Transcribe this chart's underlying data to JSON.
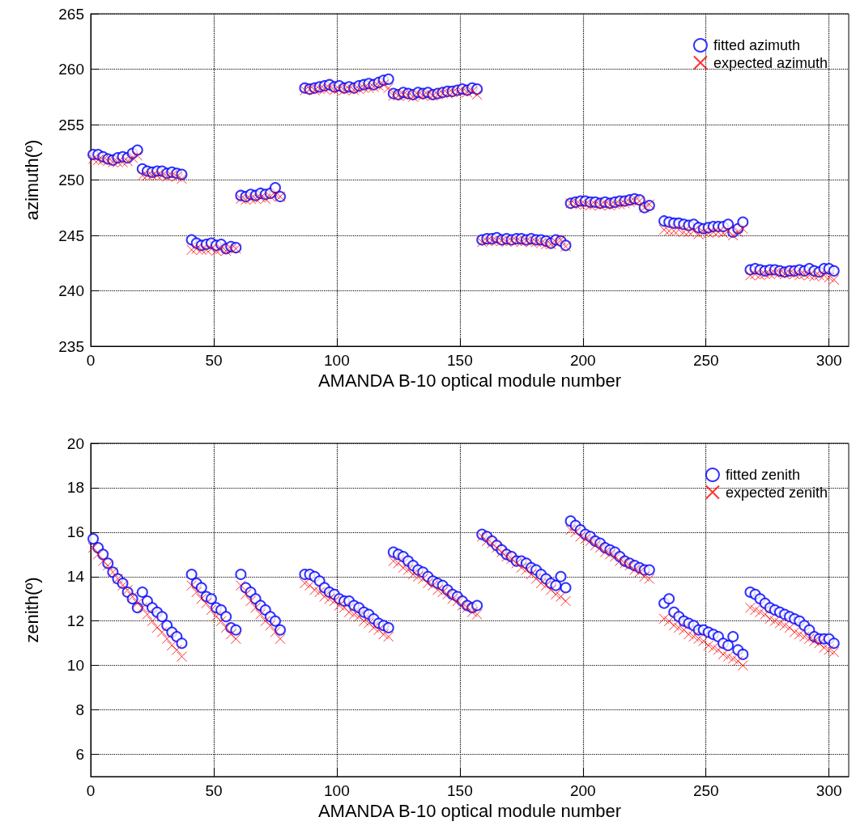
{
  "chart_data": [
    {
      "type": "scatter",
      "xlabel": "AMANDA B-10 optical module number",
      "ylabel": "azimuth(º)",
      "x": [
        1,
        3,
        5,
        7,
        9,
        11,
        13,
        15,
        17,
        19,
        21,
        23,
        25,
        27,
        29,
        31,
        33,
        35,
        37,
        41,
        43,
        45,
        47,
        49,
        51,
        53,
        55,
        57,
        59,
        61,
        63,
        65,
        67,
        69,
        71,
        73,
        75,
        77,
        87,
        89,
        91,
        93,
        95,
        97,
        99,
        101,
        103,
        105,
        107,
        109,
        111,
        113,
        115,
        117,
        119,
        121,
        123,
        125,
        127,
        129,
        131,
        133,
        135,
        137,
        139,
        141,
        143,
        145,
        147,
        149,
        151,
        153,
        155,
        157,
        159,
        161,
        163,
        165,
        167,
        169,
        171,
        173,
        175,
        177,
        179,
        181,
        183,
        185,
        187,
        189,
        191,
        193,
        195,
        197,
        199,
        201,
        203,
        205,
        207,
        209,
        211,
        213,
        215,
        217,
        219,
        221,
        223,
        225,
        227,
        233,
        235,
        237,
        239,
        241,
        243,
        245,
        247,
        249,
        251,
        253,
        255,
        257,
        259,
        261,
        263,
        265,
        268,
        270,
        272,
        274,
        276,
        278,
        280,
        282,
        284,
        286,
        288,
        290,
        292,
        294,
        296,
        298,
        300,
        302
      ],
      "series": [
        {
          "name": "fitted azimuth",
          "color": "#0000ff",
          "marker": "circle",
          "values": [
            252.3,
            252.3,
            252.1,
            251.9,
            251.8,
            252.0,
            252.1,
            252.0,
            252.4,
            252.7,
            251.0,
            250.8,
            250.7,
            250.8,
            250.8,
            250.6,
            250.7,
            250.6,
            250.5,
            244.6,
            244.3,
            244.1,
            244.2,
            244.3,
            244.1,
            244.2,
            243.8,
            244.0,
            243.9,
            248.6,
            248.5,
            248.7,
            248.6,
            248.8,
            248.7,
            248.8,
            249.3,
            248.5,
            258.3,
            258.2,
            258.3,
            258.4,
            258.5,
            258.6,
            258.4,
            258.5,
            258.3,
            258.4,
            258.3,
            258.5,
            258.6,
            258.7,
            258.6,
            258.8,
            259.0,
            259.1,
            257.8,
            257.7,
            257.9,
            257.8,
            257.7,
            257.9,
            257.8,
            257.9,
            257.7,
            257.8,
            257.9,
            258.0,
            258.0,
            258.1,
            258.2,
            258.1,
            258.3,
            258.2,
            244.6,
            244.7,
            244.7,
            244.8,
            244.6,
            244.7,
            244.6,
            244.7,
            244.7,
            244.6,
            244.7,
            244.6,
            244.6,
            244.5,
            244.3,
            244.6,
            244.5,
            244.1,
            247.9,
            248.0,
            248.1,
            248.1,
            248.0,
            248.0,
            247.9,
            248.0,
            247.9,
            248.0,
            248.1,
            248.1,
            248.2,
            248.3,
            248.2,
            247.5,
            247.7,
            246.3,
            246.2,
            246.1,
            246.1,
            246.0,
            245.9,
            246.0,
            245.7,
            245.6,
            245.7,
            245.8,
            245.8,
            245.8,
            246.0,
            245.3,
            245.6,
            246.2,
            241.9,
            242.0,
            241.9,
            241.8,
            241.9,
            241.9,
            241.8,
            241.7,
            241.8,
            241.8,
            241.9,
            241.8,
            242.0,
            241.8,
            241.7,
            242.0,
            242.0,
            241.8
          ]
        },
        {
          "name": "expected azimuth",
          "color": "#ff0000",
          "marker": "cross",
          "values": [
            251.9,
            251.8,
            251.8,
            251.7,
            251.6,
            251.6,
            251.6,
            251.7,
            252.0,
            252.2,
            250.4,
            250.4,
            250.4,
            250.4,
            250.4,
            250.3,
            250.4,
            250.3,
            250.1,
            243.7,
            243.8,
            243.7,
            243.7,
            243.8,
            243.6,
            243.8,
            243.6,
            243.8,
            243.8,
            248.3,
            248.2,
            248.3,
            248.3,
            248.4,
            248.3,
            248.5,
            248.7,
            248.5,
            258.1,
            258.2,
            258.1,
            258.2,
            258.2,
            258.3,
            258.1,
            258.2,
            258.1,
            258.2,
            258.1,
            258.2,
            258.3,
            258.3,
            258.4,
            258.5,
            258.6,
            258.3,
            257.6,
            257.6,
            257.7,
            257.6,
            257.5,
            257.7,
            257.6,
            257.7,
            257.6,
            257.7,
            257.8,
            257.8,
            257.9,
            257.9,
            258.0,
            257.9,
            258.0,
            257.7,
            244.4,
            244.5,
            244.5,
            244.5,
            244.5,
            244.4,
            244.5,
            244.5,
            244.4,
            244.5,
            244.4,
            244.4,
            244.3,
            244.2,
            244.2,
            244.4,
            244.6,
            244.0,
            247.9,
            247.8,
            247.8,
            247.8,
            247.7,
            247.8,
            247.7,
            247.8,
            247.7,
            247.8,
            247.8,
            247.9,
            248.0,
            248.1,
            248.1,
            247.5,
            247.8,
            245.5,
            245.4,
            245.4,
            245.5,
            245.3,
            245.3,
            245.4,
            245.1,
            245.3,
            245.2,
            245.3,
            245.3,
            245.2,
            245.4,
            245.0,
            245.3,
            245.6,
            241.4,
            241.5,
            241.4,
            241.5,
            241.5,
            241.6,
            241.6,
            241.5,
            241.6,
            241.5,
            241.4,
            241.5,
            241.4,
            241.3,
            241.4,
            241.4,
            241.2,
            241.0
          ]
        }
      ],
      "xlim": [
        0,
        308
      ],
      "xticks": [
        0,
        50,
        100,
        150,
        200,
        250,
        300
      ],
      "ylim": [
        235,
        265
      ],
      "yticks": [
        235,
        240,
        245,
        250,
        255,
        260,
        265
      ],
      "grid": true,
      "legend": "top right"
    },
    {
      "type": "scatter",
      "xlabel": "AMANDA B-10 optical module number",
      "ylabel": "zenith(º)",
      "x": [
        1,
        3,
        5,
        7,
        9,
        11,
        13,
        15,
        17,
        19,
        21,
        23,
        25,
        27,
        29,
        31,
        33,
        35,
        37,
        41,
        43,
        45,
        47,
        49,
        51,
        53,
        55,
        57,
        59,
        61,
        63,
        65,
        67,
        69,
        71,
        73,
        75,
        77,
        87,
        89,
        91,
        93,
        95,
        97,
        99,
        101,
        103,
        105,
        107,
        109,
        111,
        113,
        115,
        117,
        119,
        121,
        123,
        125,
        127,
        129,
        131,
        133,
        135,
        137,
        139,
        141,
        143,
        145,
        147,
        149,
        151,
        153,
        155,
        157,
        159,
        161,
        163,
        165,
        167,
        169,
        171,
        173,
        175,
        177,
        179,
        181,
        183,
        185,
        187,
        189,
        191,
        193,
        195,
        197,
        199,
        201,
        203,
        205,
        207,
        209,
        211,
        213,
        215,
        217,
        219,
        221,
        223,
        225,
        227,
        233,
        235,
        237,
        239,
        241,
        243,
        245,
        247,
        249,
        251,
        253,
        255,
        257,
        259,
        261,
        263,
        265,
        268,
        270,
        272,
        274,
        276,
        278,
        280,
        282,
        284,
        286,
        288,
        290,
        292,
        294,
        296,
        298,
        300,
        302
      ],
      "series": [
        {
          "name": "fitted zenith",
          "color": "#0000ff",
          "marker": "circle",
          "values": [
            15.7,
            15.3,
            15.0,
            14.6,
            14.2,
            13.9,
            13.7,
            13.3,
            13.0,
            12.6,
            13.3,
            12.9,
            12.6,
            12.4,
            12.2,
            11.8,
            11.5,
            11.3,
            11.0,
            14.1,
            13.7,
            13.5,
            13.1,
            13.0,
            12.6,
            12.5,
            12.2,
            11.7,
            11.6,
            14.1,
            13.5,
            13.3,
            13.0,
            12.7,
            12.5,
            12.2,
            12.0,
            11.6,
            14.1,
            14.1,
            14.0,
            13.8,
            13.5,
            13.3,
            13.2,
            13.0,
            12.9,
            12.9,
            12.7,
            12.6,
            12.4,
            12.3,
            12.1,
            11.9,
            11.8,
            11.7,
            15.1,
            15.0,
            14.9,
            14.7,
            14.5,
            14.3,
            14.2,
            14.0,
            13.8,
            13.7,
            13.6,
            13.4,
            13.2,
            13.1,
            12.9,
            12.7,
            12.6,
            12.7,
            15.9,
            15.8,
            15.6,
            15.4,
            15.2,
            15.0,
            14.9,
            14.7,
            14.7,
            14.6,
            14.4,
            14.3,
            14.1,
            13.9,
            13.7,
            13.6,
            14.0,
            13.5,
            16.5,
            16.3,
            16.1,
            15.9,
            15.8,
            15.6,
            15.5,
            15.3,
            15.2,
            15.1,
            14.9,
            14.7,
            14.6,
            14.5,
            14.4,
            14.3,
            14.3,
            12.8,
            13.0,
            12.4,
            12.2,
            12.0,
            11.9,
            11.8,
            11.6,
            11.6,
            11.5,
            11.4,
            11.3,
            11.0,
            10.9,
            11.3,
            10.7,
            10.5,
            13.3,
            13.2,
            13.0,
            12.8,
            12.6,
            12.5,
            12.4,
            12.3,
            12.2,
            12.1,
            12.0,
            11.8,
            11.6,
            11.3,
            11.2,
            11.2,
            11.2,
            11.0
          ]
        },
        {
          "name": "expected zenith",
          "color": "#ff0000",
          "marker": "cross",
          "values": [
            15.3,
            15.0,
            14.7,
            14.5,
            14.2,
            13.9,
            13.6,
            13.4,
            13.1,
            12.8,
            12.6,
            12.3,
            12.0,
            11.7,
            11.5,
            11.2,
            10.9,
            10.7,
            10.4,
            13.6,
            13.3,
            13.0,
            12.8,
            12.5,
            12.2,
            12.0,
            11.7,
            11.4,
            11.2,
            13.6,
            13.2,
            12.9,
            12.6,
            12.3,
            12.0,
            11.8,
            11.5,
            11.2,
            13.7,
            13.6,
            13.4,
            13.3,
            13.1,
            13.0,
            12.9,
            12.7,
            12.6,
            12.4,
            12.3,
            12.2,
            12.0,
            11.9,
            11.7,
            11.6,
            11.4,
            11.3,
            14.7,
            14.6,
            14.4,
            14.3,
            14.1,
            14.0,
            13.9,
            13.7,
            13.6,
            13.4,
            13.3,
            13.2,
            13.0,
            12.9,
            12.7,
            12.6,
            12.4,
            12.3,
            15.8,
            15.6,
            15.5,
            15.3,
            15.1,
            14.9,
            14.8,
            14.6,
            14.4,
            14.3,
            14.1,
            13.9,
            13.7,
            13.6,
            13.4,
            13.2,
            13.1,
            12.9,
            16.1,
            16.0,
            15.8,
            15.7,
            15.6,
            15.4,
            15.3,
            15.1,
            15.0,
            14.9,
            14.7,
            14.6,
            14.5,
            14.3,
            14.2,
            14.0,
            13.9,
            12.1,
            12.0,
            11.8,
            11.7,
            11.6,
            11.4,
            11.3,
            11.2,
            11.1,
            10.9,
            10.8,
            10.7,
            10.5,
            10.4,
            10.3,
            10.2,
            10.0,
            12.6,
            12.5,
            12.4,
            12.3,
            12.1,
            12.0,
            11.9,
            11.8,
            11.7,
            11.5,
            11.4,
            11.3,
            11.2,
            11.1,
            11.0,
            10.8,
            10.7,
            10.6
          ]
        }
      ],
      "xlim": [
        0,
        308
      ],
      "xticks": [
        0,
        50,
        100,
        150,
        200,
        250,
        300
      ],
      "ylim": [
        5,
        20
      ],
      "yticks": [
        6,
        8,
        10,
        12,
        14,
        16,
        18,
        20
      ],
      "grid": true,
      "legend": "top right"
    }
  ]
}
